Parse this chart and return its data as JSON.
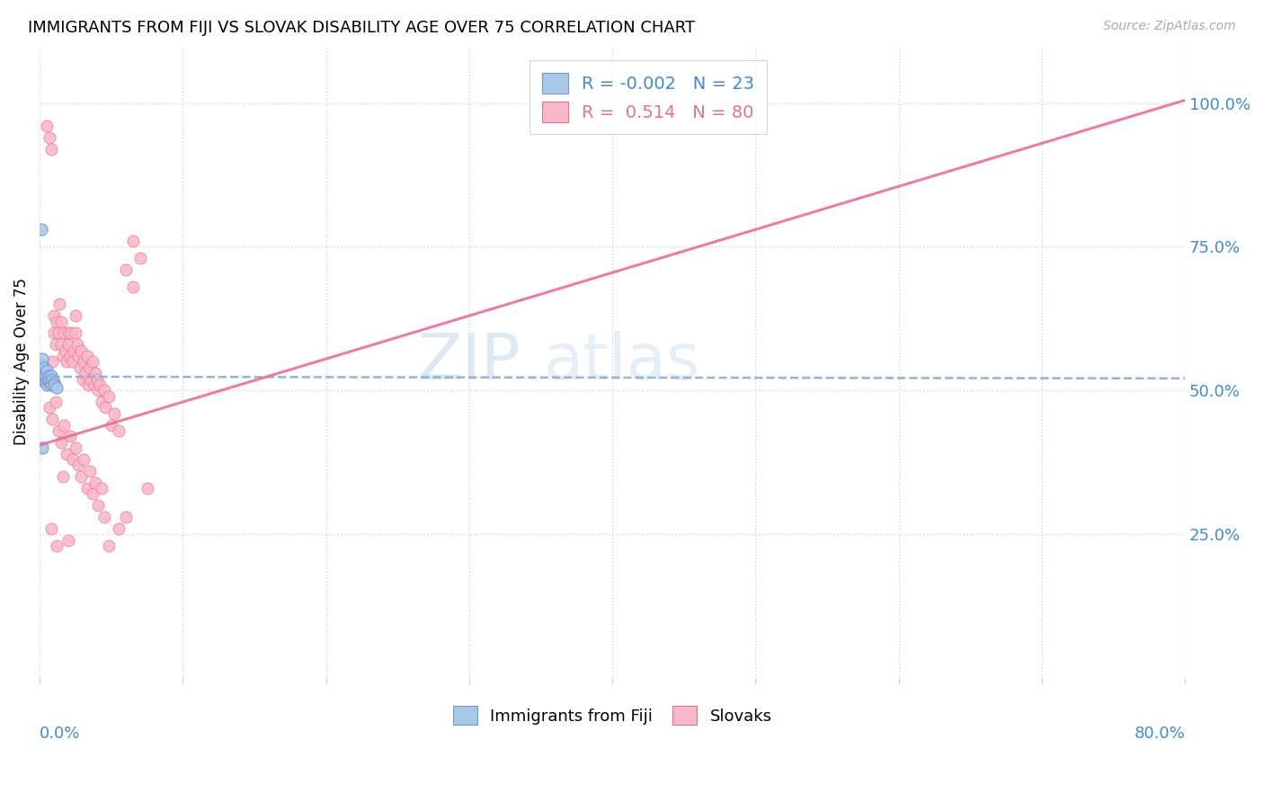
{
  "title": "IMMIGRANTS FROM FIJI VS SLOVAK DISABILITY AGE OVER 75 CORRELATION CHART",
  "source": "Source: ZipAtlas.com",
  "ylabel": "Disability Age Over 75",
  "legend_fiji_r": "-0.002",
  "legend_fiji_n": "23",
  "legend_slovak_r": "0.514",
  "legend_slovak_n": "80",
  "fiji_color": "#a8c8e8",
  "slovak_color": "#f8b8c8",
  "fiji_edge_color": "#7799cc",
  "slovak_edge_color": "#e87090",
  "fiji_trend_color": "#88aadd",
  "slovak_trend_color": "#e87090",
  "watermark_color": "#cce0f0",
  "right_label_color": "#4488cc",
  "xmin": 0.0,
  "xmax": 0.8,
  "ymin": 0.0,
  "ymax": 1.1,
  "fiji_scatter_x": [
    0.001,
    0.001,
    0.002,
    0.002,
    0.003,
    0.003,
    0.004,
    0.004,
    0.004,
    0.005,
    0.005,
    0.005,
    0.006,
    0.006,
    0.007,
    0.007,
    0.008,
    0.008,
    0.009,
    0.01,
    0.01,
    0.012,
    0.002
  ],
  "fiji_scatter_y": [
    0.78,
    0.535,
    0.545,
    0.555,
    0.52,
    0.54,
    0.515,
    0.53,
    0.525,
    0.51,
    0.52,
    0.535,
    0.52,
    0.525,
    0.515,
    0.52,
    0.51,
    0.525,
    0.52,
    0.515,
    0.51,
    0.505,
    0.4
  ],
  "fiji_trend_x": [
    0.0,
    0.8
  ],
  "fiji_trend_y": [
    0.524,
    0.521
  ],
  "slovak_trend_x": [
    0.0,
    0.8
  ],
  "slovak_trend_y": [
    0.405,
    1.005
  ],
  "slovak_scatter_x": [
    0.005,
    0.007,
    0.008,
    0.009,
    0.01,
    0.01,
    0.011,
    0.012,
    0.013,
    0.014,
    0.015,
    0.015,
    0.016,
    0.017,
    0.018,
    0.019,
    0.02,
    0.02,
    0.021,
    0.022,
    0.023,
    0.024,
    0.025,
    0.025,
    0.026,
    0.027,
    0.028,
    0.029,
    0.03,
    0.031,
    0.032,
    0.033,
    0.034,
    0.035,
    0.036,
    0.037,
    0.038,
    0.039,
    0.04,
    0.041,
    0.042,
    0.043,
    0.045,
    0.046,
    0.048,
    0.05,
    0.052,
    0.055,
    0.06,
    0.065,
    0.007,
    0.009,
    0.011,
    0.013,
    0.015,
    0.017,
    0.019,
    0.021,
    0.023,
    0.025,
    0.027,
    0.029,
    0.031,
    0.033,
    0.035,
    0.037,
    0.039,
    0.041,
    0.043,
    0.045,
    0.008,
    0.012,
    0.016,
    0.02,
    0.048,
    0.055,
    0.06,
    0.065,
    0.07,
    0.075
  ],
  "slovak_scatter_y": [
    0.96,
    0.94,
    0.92,
    0.55,
    0.6,
    0.63,
    0.58,
    0.62,
    0.6,
    0.65,
    0.58,
    0.62,
    0.56,
    0.6,
    0.57,
    0.55,
    0.58,
    0.6,
    0.56,
    0.6,
    0.55,
    0.57,
    0.63,
    0.6,
    0.58,
    0.56,
    0.54,
    0.57,
    0.52,
    0.55,
    0.53,
    0.56,
    0.51,
    0.54,
    0.52,
    0.55,
    0.51,
    0.53,
    0.52,
    0.5,
    0.51,
    0.48,
    0.5,
    0.47,
    0.49,
    0.44,
    0.46,
    0.43,
    0.71,
    0.76,
    0.47,
    0.45,
    0.48,
    0.43,
    0.41,
    0.44,
    0.39,
    0.42,
    0.38,
    0.4,
    0.37,
    0.35,
    0.38,
    0.33,
    0.36,
    0.32,
    0.34,
    0.3,
    0.33,
    0.28,
    0.26,
    0.23,
    0.35,
    0.24,
    0.23,
    0.26,
    0.28,
    0.68,
    0.73,
    0.33
  ]
}
